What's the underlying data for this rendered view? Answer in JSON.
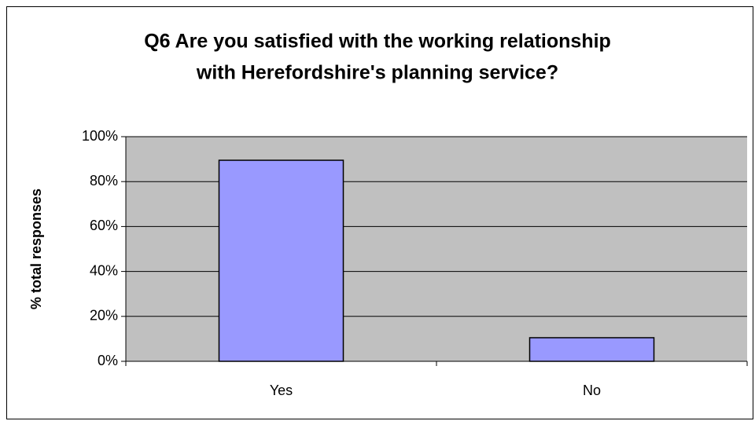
{
  "chart_data": {
    "type": "bar",
    "title": [
      "Q6 Are you satisfied with the working relationship",
      "with Herefordshire's planning service?"
    ],
    "ylabel": "% total responses",
    "categories": [
      "Yes",
      "No"
    ],
    "values": [
      89.5,
      10.5
    ],
    "color": "#9999ff",
    "ylim": [
      0,
      100
    ],
    "yticks": [
      {
        "value": 0,
        "label": "0%"
      },
      {
        "value": 20,
        "label": "20%"
      },
      {
        "value": 40,
        "label": "40%"
      },
      {
        "value": 60,
        "label": "60%"
      },
      {
        "value": 80,
        "label": "80%"
      },
      {
        "value": 100,
        "label": "100%"
      }
    ],
    "grid": true
  }
}
